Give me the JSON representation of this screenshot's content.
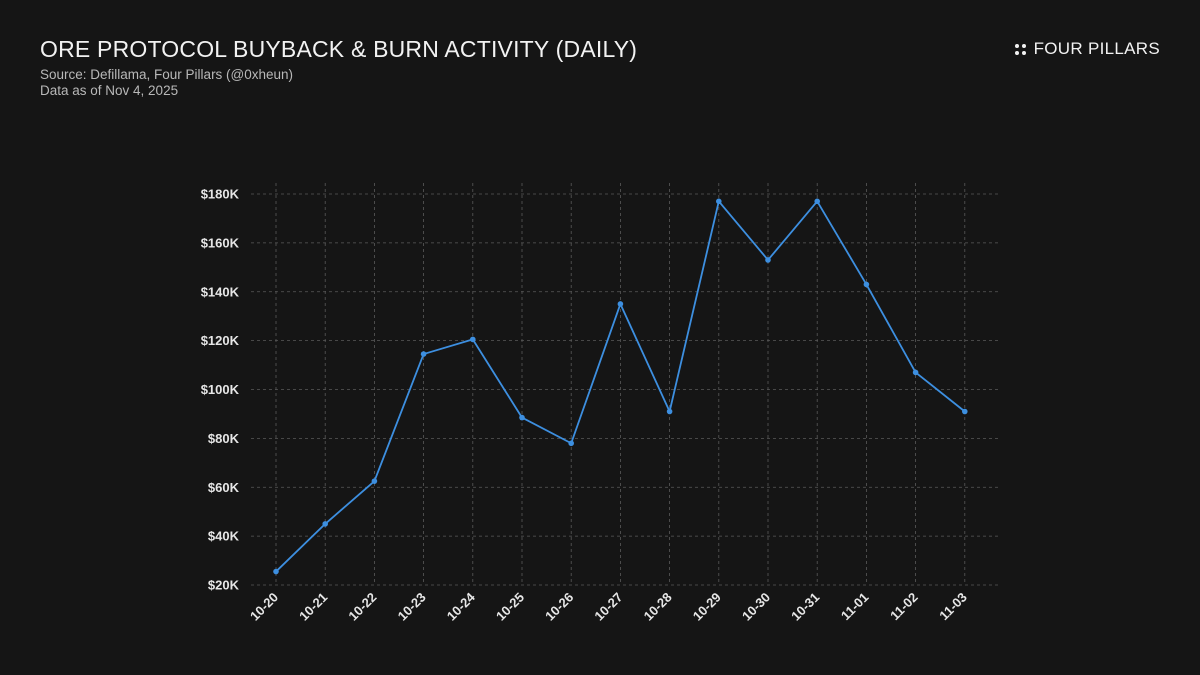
{
  "header": {
    "title": "ORE PROTOCOL BUYBACK & BURN ACTIVITY (DAILY)",
    "source_line": "Source: Defillama, Four Pillars (@0xheun)",
    "date_line": "Data as of Nov 4, 2025",
    "brand": "FOUR PILLARS"
  },
  "chart_data": {
    "type": "line",
    "title": "ORE PROTOCOL BUYBACK & BURN ACTIVITY (DAILY)",
    "xlabel": "",
    "ylabel": "",
    "categories": [
      "10-20",
      "10-21",
      "10-22",
      "10-23",
      "10-24",
      "10-25",
      "10-26",
      "10-27",
      "10-28",
      "10-29",
      "10-30",
      "10-31",
      "11-01",
      "11-02",
      "11-03"
    ],
    "series": [
      {
        "values": [
          25500,
          45000,
          62500,
          114500,
          120500,
          88500,
          78000,
          135000,
          91000,
          177000,
          153000,
          177000,
          143000,
          107000,
          91000
        ]
      }
    ],
    "ylim": [
      20000,
      180000
    ],
    "yticks": [
      20000,
      40000,
      60000,
      80000,
      100000,
      120000,
      140000,
      160000,
      180000
    ],
    "ytick_labels": [
      "$20K",
      "$40K",
      "$60K",
      "$80K",
      "$100K",
      "$120K",
      "$140K",
      "$160K",
      "$180K"
    ],
    "grid": true,
    "legend": "none",
    "colors": {
      "line": "#3d8fe0",
      "grid": "#5a5a5a",
      "background": "#151515"
    }
  }
}
